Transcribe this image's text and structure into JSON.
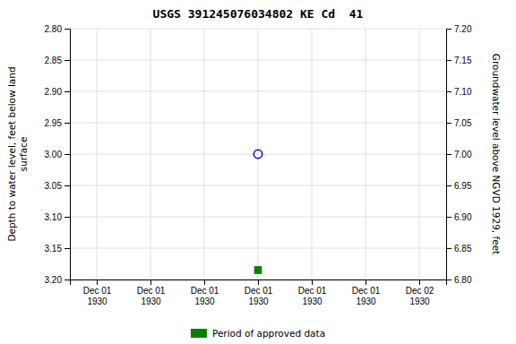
{
  "chart_data": {
    "type": "scatter",
    "title": "USGS 391245076034802 KE Cd  41",
    "y_label": "Depth to water level, feet below land\n surface",
    "y2_label": "Groundwater level above NGVD 1929, feet",
    "categories": [
      "Dec 01\n1930",
      "Dec 01\n1930",
      "Dec 01\n1930",
      "Dec 01\n1930",
      "Dec 01\n1930",
      "Dec 01\n1930",
      "Dec 02\n1930"
    ],
    "series": [
      {
        "color": "#0000cc",
        "marker": "circle-open",
        "values": [
          null,
          null,
          null,
          3.0,
          null,
          null,
          null
        ]
      },
      {
        "name": "Period of approved data",
        "color": "#008000",
        "marker": "square",
        "values": [
          null,
          null,
          null,
          3.185,
          null,
          null,
          null
        ]
      }
    ],
    "ylim": [
      3.2,
      2.8
    ],
    "yticks": [
      {
        "value": 2.8,
        "label": "2.80"
      },
      {
        "value": 2.85,
        "label": "2.85"
      },
      {
        "value": 2.9,
        "label": "2.90"
      },
      {
        "value": 2.95,
        "label": "2.95"
      },
      {
        "value": 3.0,
        "label": "3.00"
      },
      {
        "value": 3.05,
        "label": "3.05"
      },
      {
        "value": 3.1,
        "label": "3.10"
      },
      {
        "value": 3.15,
        "label": "3.15"
      },
      {
        "value": 3.2,
        "label": "3.20"
      }
    ],
    "y2lim": [
      6.8,
      7.2
    ],
    "y2ticks": [
      {
        "value": 6.8,
        "label": "6.80"
      },
      {
        "value": 6.85,
        "label": "6.85"
      },
      {
        "value": 6.9,
        "label": "6.90"
      },
      {
        "value": 6.95,
        "label": "6.95"
      },
      {
        "value": 7.0,
        "label": "7.00"
      },
      {
        "value": 7.05,
        "label": "7.05"
      },
      {
        "value": 7.1,
        "label": "7.10"
      },
      {
        "value": 7.15,
        "label": "7.15"
      },
      {
        "value": 7.2,
        "label": "7.20"
      }
    ],
    "grid": true,
    "legend": "bottom"
  }
}
